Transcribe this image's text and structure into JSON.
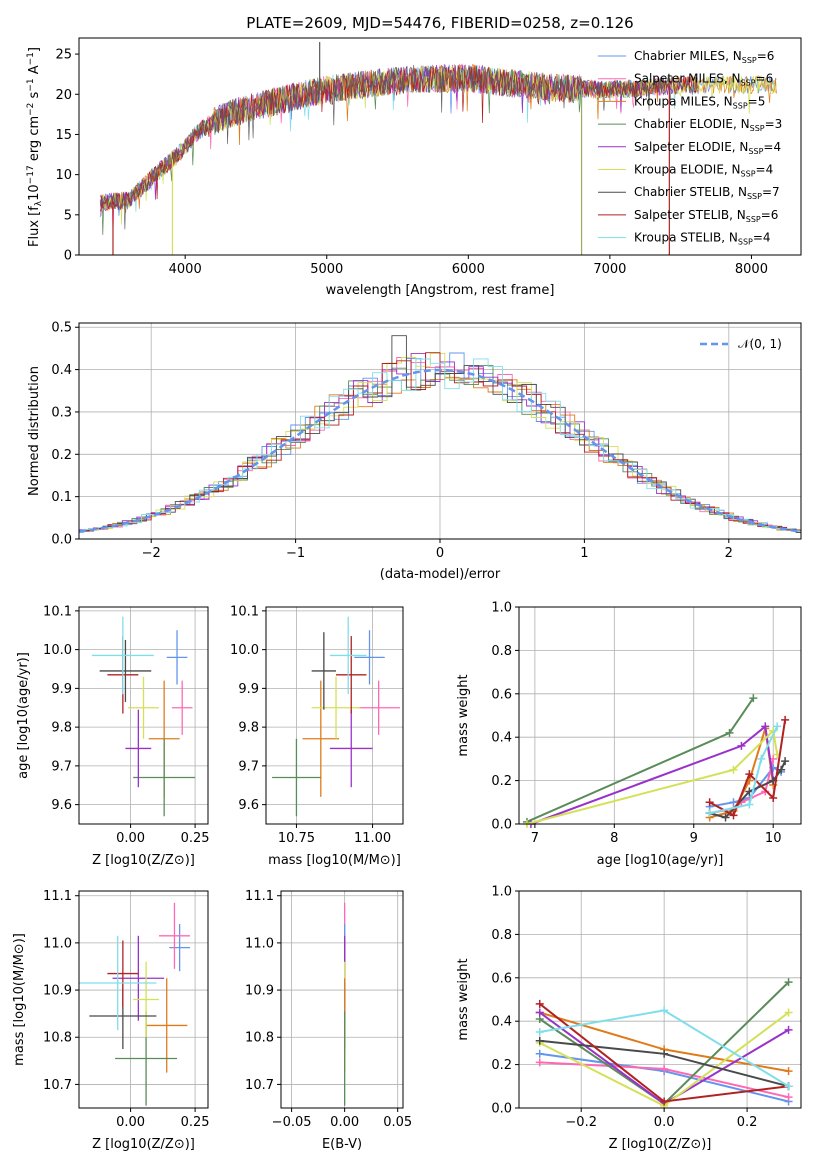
{
  "chart_data": [
    {
      "id": "spectrum",
      "type": "line",
      "title": "PLATE=2609, MJD=54476, FIBERID=0258, z=0.126",
      "xlabel": "wavelength [Angstrom, rest frame]",
      "ylabel": "Flux [f_λ10^-17 erg cm^-2 s^-1 A^-1]",
      "xlim": [
        3250,
        8350
      ],
      "ylim": [
        0,
        27
      ],
      "xticks": [
        4000,
        5000,
        6000,
        7000,
        8000
      ],
      "yticks": [
        0,
        5,
        10,
        15,
        20,
        25
      ],
      "legend": [
        "Chabrier MILES, N_SSP=6",
        "Salpeter MILES, N_SSP=6",
        "Kroupa MILES, N_SSP=5",
        "Chabrier ELODIE, N_SSP=3",
        "Salpeter ELODIE, N_SSP=4",
        "Kroupa ELODIE, N_SSP=4",
        "Chabrier STELIB, N_SSP=7",
        "Salpeter STELIB, N_SSP=6",
        "Kroupa STELIB, N_SSP=4"
      ],
      "legend_location": "upper-right",
      "continuum": {
        "x": [
          3400,
          3600,
          3800,
          3950,
          4100,
          4300,
          4500,
          4800,
          5000,
          5300,
          5600,
          6000,
          6300,
          6600,
          6900,
          7200,
          7500
        ],
        "y": [
          6.5,
          6.8,
          10.2,
          12.5,
          15.5,
          17.5,
          18.5,
          19.8,
          20.6,
          21.3,
          21.9,
          22.0,
          21.4,
          20.8,
          20.6,
          20.7,
          21.2
        ]
      },
      "spikes": [
        {
          "x": 3490,
          "y": 0
        },
        {
          "x": 3910,
          "y": 0
        },
        {
          "x": 4950,
          "y": 26.5
        },
        {
          "x": 6800,
          "y": 0
        },
        {
          "x": 7420,
          "y": 0
        }
      ]
    },
    {
      "id": "residuals",
      "type": "step",
      "xlabel": "(data-model)/error",
      "ylabel": "Normed distribution",
      "xlim": [
        -2.5,
        2.5
      ],
      "ylim": [
        0,
        0.51
      ],
      "xticks": [
        -2,
        -1,
        0,
        1,
        2
      ],
      "yticks": [
        0.0,
        0.1,
        0.2,
        0.3,
        0.4,
        0.5
      ],
      "grid": true,
      "legend": [
        "𝒩(0, 1)"
      ],
      "legend_location": "upper-right",
      "bin_width": 0.1,
      "peak_observed": 0.48
    },
    {
      "id": "age_vs_Z",
      "type": "errorbar",
      "xlabel": "Z [log10(Z/Z⊙)]",
      "ylabel": "age [log10(age/yr)]",
      "xlim": [
        -0.2,
        0.3
      ],
      "ylim": [
        9.55,
        10.11
      ],
      "xticks": [
        0.0,
        0.25
      ],
      "yticks": [
        9.6,
        9.7,
        9.8,
        9.9,
        10.0,
        10.1
      ],
      "grid": true,
      "points": [
        {
          "x": 0.18,
          "y": 9.98,
          "ex": 0.04,
          "ey": 0.07
        },
        {
          "x": 0.2,
          "y": 9.85,
          "ex": 0.04,
          "ey": 0.07
        },
        {
          "x": 0.13,
          "y": 9.77,
          "ex": 0.06,
          "ey": 0.15
        },
        {
          "x": 0.13,
          "y": 9.67,
          "ex": 0.12,
          "ey": 0.1
        },
        {
          "x": 0.03,
          "y": 9.745,
          "ex": 0.05,
          "ey": 0.1
        },
        {
          "x": 0.05,
          "y": 9.85,
          "ex": 0.06,
          "ey": 0.08
        },
        {
          "x": -0.02,
          "y": 9.945,
          "ex": 0.1,
          "ey": 0.08
        },
        {
          "x": -0.03,
          "y": 9.935,
          "ex": 0.06,
          "ey": 0.1
        },
        {
          "x": -0.03,
          "y": 9.985,
          "ex": 0.12,
          "ey": 0.1
        }
      ]
    },
    {
      "id": "age_vs_mass",
      "type": "errorbar",
      "xlabel": "mass [log10(M/M⊙)]",
      "ylabel": "",
      "xlim": [
        10.65,
        11.1
      ],
      "ylim": [
        9.55,
        10.11
      ],
      "xticks": [
        10.75,
        11.0
      ],
      "yticks": [
        9.6,
        9.7,
        9.8,
        9.9,
        10.0,
        10.1
      ],
      "grid": true,
      "points": [
        {
          "x": 10.99,
          "y": 9.98,
          "ex": 0.05,
          "ey": 0.07
        },
        {
          "x": 11.02,
          "y": 9.85,
          "ex": 0.07,
          "ey": 0.07
        },
        {
          "x": 10.83,
          "y": 9.77,
          "ex": 0.06,
          "ey": 0.15
        },
        {
          "x": 10.75,
          "y": 9.67,
          "ex": 0.08,
          "ey": 0.1
        },
        {
          "x": 10.93,
          "y": 9.745,
          "ex": 0.07,
          "ey": 0.1
        },
        {
          "x": 10.88,
          "y": 9.85,
          "ex": 0.08,
          "ey": 0.08
        },
        {
          "x": 10.84,
          "y": 9.945,
          "ex": 0.04,
          "ey": 0.1
        },
        {
          "x": 10.93,
          "y": 9.935,
          "ex": 0.05,
          "ey": 0.1
        },
        {
          "x": 10.92,
          "y": 9.985,
          "ex": 0.06,
          "ey": 0.1
        }
      ]
    },
    {
      "id": "weight_vs_age",
      "type": "line",
      "xlabel": "age [log10(age/yr)]",
      "ylabel": "mass weight",
      "xlim": [
        6.8,
        10.35
      ],
      "ylim": [
        0,
        1.0
      ],
      "xticks": [
        7,
        8,
        9,
        10
      ],
      "yticks": [
        0.0,
        0.2,
        0.4,
        0.6,
        0.8,
        1.0
      ],
      "grid": true,
      "series": [
        {
          "x": [
            9.2,
            9.5,
            9.7,
            10.0,
            10.1
          ],
          "y": [
            0.08,
            0.1,
            0.12,
            0.26,
            0.24
          ]
        },
        {
          "x": [
            9.2,
            9.5,
            9.6,
            9.9,
            10.0
          ],
          "y": [
            0.05,
            0.07,
            0.1,
            0.15,
            0.3
          ]
        },
        {
          "x": [
            9.2,
            9.5,
            9.7,
            9.9,
            10.0
          ],
          "y": [
            0.03,
            0.06,
            0.2,
            0.44,
            0.18
          ]
        },
        {
          "x": [
            6.9,
            9.45,
            9.75
          ],
          "y": [
            0.01,
            0.42,
            0.58
          ]
        },
        {
          "x": [
            6.95,
            9.6,
            9.9,
            10.0
          ],
          "y": [
            0.0,
            0.36,
            0.45,
            0.2
          ]
        },
        {
          "x": [
            6.9,
            9.5,
            10.0,
            10.05
          ],
          "y": [
            0.0,
            0.25,
            0.43,
            0.32
          ]
        },
        {
          "x": [
            9.2,
            9.4,
            9.7,
            10.0,
            10.1,
            10.15
          ],
          "y": [
            0.05,
            0.03,
            0.15,
            0.2,
            0.25,
            0.29
          ]
        },
        {
          "x": [
            9.2,
            9.5,
            9.7,
            10.0,
            10.15
          ],
          "y": [
            0.1,
            0.04,
            0.23,
            0.12,
            0.48
          ]
        },
        {
          "x": [
            9.2,
            9.7,
            9.85,
            10.05
          ],
          "y": [
            0.05,
            0.09,
            0.3,
            0.45
          ]
        }
      ]
    },
    {
      "id": "mass_vs_Z",
      "type": "errorbar",
      "xlabel": "Z [log10(Z/Z⊙)]",
      "ylabel": "mass [log10(M/M⊙)]",
      "xlim": [
        -0.2,
        0.3
      ],
      "ylim": [
        10.65,
        11.11
      ],
      "xticks": [
        0.0,
        0.25
      ],
      "yticks": [
        10.7,
        10.8,
        10.9,
        11.0,
        11.1
      ],
      "grid": true,
      "points": [
        {
          "x": 0.19,
          "y": 10.99,
          "ex": 0.04,
          "ey": 0.05
        },
        {
          "x": 0.17,
          "y": 11.015,
          "ex": 0.06,
          "ey": 0.07
        },
        {
          "x": 0.14,
          "y": 10.825,
          "ex": 0.08,
          "ey": 0.1
        },
        {
          "x": 0.06,
          "y": 10.755,
          "ex": 0.12,
          "ey": 0.1
        },
        {
          "x": 0.03,
          "y": 10.925,
          "ex": 0.1,
          "ey": 0.09
        },
        {
          "x": 0.06,
          "y": 10.88,
          "ex": 0.05,
          "ey": 0.08
        },
        {
          "x": -0.03,
          "y": 10.845,
          "ex": 0.13,
          "ey": 0.07
        },
        {
          "x": -0.03,
          "y": 10.935,
          "ex": 0.06,
          "ey": 0.07
        },
        {
          "x": -0.05,
          "y": 10.915,
          "ex": 0.15,
          "ey": 0.1
        }
      ]
    },
    {
      "id": "mass_vs_EBV",
      "type": "errorbar",
      "xlabel": "E(B-V)",
      "ylabel": "",
      "xlim": [
        -0.06,
        0.055
      ],
      "ylim": [
        10.65,
        11.11
      ],
      "xticks": [
        -0.05,
        0.0,
        0.05
      ],
      "yticks": [
        10.7,
        10.8,
        10.9,
        11.0,
        11.1
      ],
      "grid": true,
      "points": [
        {
          "x": 0,
          "y": 11.015,
          "ey": 0.07
        },
        {
          "x": 0,
          "y": 10.99,
          "ey": 0.05
        },
        {
          "x": 0,
          "y": 10.935,
          "ey": 0.07
        },
        {
          "x": 0,
          "y": 10.925,
          "ey": 0.09
        },
        {
          "x": 0,
          "y": 10.88,
          "ey": 0.08
        },
        {
          "x": 0,
          "y": 10.845,
          "ey": 0.07
        },
        {
          "x": 0,
          "y": 10.825,
          "ey": 0.1
        },
        {
          "x": 0,
          "y": 10.755,
          "ey": 0.1
        }
      ]
    },
    {
      "id": "weight_vs_Z",
      "type": "line",
      "xlabel": "Z [log10(Z/Z⊙)]",
      "ylabel": "mass weight",
      "xlim": [
        -0.35,
        0.33
      ],
      "ylim": [
        0,
        1.0
      ],
      "xticks": [
        -0.2,
        0.0,
        0.2
      ],
      "yticks": [
        0.0,
        0.2,
        0.4,
        0.6,
        0.8,
        1.0
      ],
      "grid": true,
      "series": [
        {
          "x": [
            -0.3,
            0.0,
            0.3
          ],
          "y": [
            0.25,
            0.17,
            0.03
          ]
        },
        {
          "x": [
            -0.3,
            0.0,
            0.3
          ],
          "y": [
            0.21,
            0.18,
            0.05
          ]
        },
        {
          "x": [
            -0.3,
            0.0,
            0.3
          ],
          "y": [
            0.44,
            0.27,
            0.17
          ]
        },
        {
          "x": [
            -0.3,
            0.0,
            0.3
          ],
          "y": [
            0.41,
            0.02,
            0.58
          ]
        },
        {
          "x": [
            -0.3,
            0.0,
            0.3
          ],
          "y": [
            0.44,
            0.02,
            0.36
          ]
        },
        {
          "x": [
            -0.3,
            0.0,
            0.3
          ],
          "y": [
            0.3,
            0.01,
            0.44
          ]
        },
        {
          "x": [
            -0.3,
            0.0,
            0.3
          ],
          "y": [
            0.31,
            0.25,
            0.1
          ]
        },
        {
          "x": [
            -0.3,
            0.0,
            0.3
          ],
          "y": [
            0.48,
            0.03,
            0.1
          ]
        },
        {
          "x": [
            -0.3,
            0.0,
            0.3
          ],
          "y": [
            0.35,
            0.45,
            0.1
          ]
        }
      ]
    }
  ],
  "colors": [
    "#6495ed",
    "#ff69b4",
    "#e07b1a",
    "#5a8c5a",
    "#9932cc",
    "#d4e157",
    "#4a4a4a",
    "#b22222",
    "#80deea"
  ]
}
